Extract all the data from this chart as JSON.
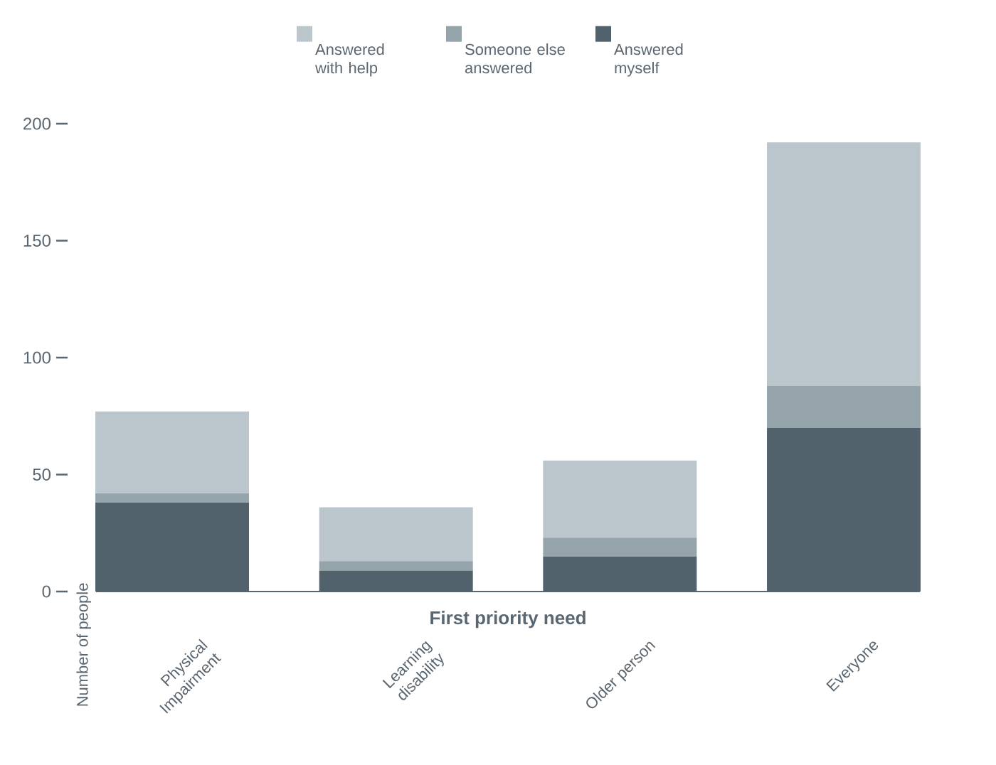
{
  "chart_data": {
    "type": "bar",
    "stacked": true,
    "xlabel": "First priority need",
    "ylabel": "Number of people",
    "categories": [
      "Physical Impairment",
      "Learning disability",
      "Older person",
      "Everyone"
    ],
    "series": [
      {
        "name": "Answered myself",
        "color": "#52626c",
        "values": [
          38,
          9,
          15,
          70
        ]
      },
      {
        "name": "Someone else answered",
        "color": "#95a3ab",
        "values": [
          4,
          4,
          8,
          18
        ]
      },
      {
        "name": "Answered with help",
        "color": "#bbc6cc",
        "values": [
          35,
          23,
          33,
          104
        ]
      }
    ],
    "ylim": [
      0,
      200
    ],
    "yticks": [
      0,
      50,
      100,
      150,
      200
    ],
    "legend": "top"
  }
}
